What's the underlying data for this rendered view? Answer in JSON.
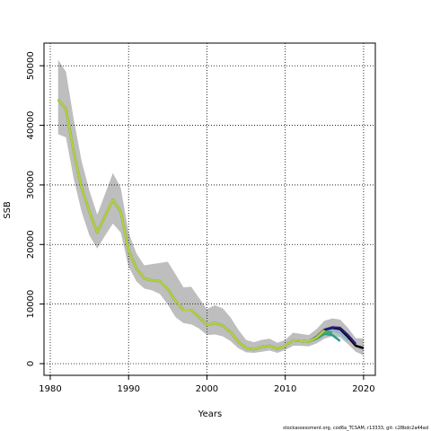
{
  "chart_data": {
    "type": "line",
    "xlabel": "Years",
    "ylabel": "SSB",
    "footnote": "stockassessment.org, cod6a_TCSAM, r13333, git: c28bdc2a44ad",
    "x": [
      1981,
      1982,
      1983,
      1984,
      1985,
      1986,
      1987,
      1988,
      1989,
      1990,
      1991,
      1992,
      1993,
      1994,
      1995,
      1996,
      1997,
      1998,
      1999,
      2000,
      2001,
      2002,
      2003,
      2004,
      2005,
      2006,
      2007,
      2008,
      2009,
      2010,
      2011,
      2012,
      2013,
      2014,
      2015,
      2016,
      2017,
      2018,
      2019,
      2020
    ],
    "band": {
      "color": "#bebebe",
      "upper": [
        51000,
        49000,
        41000,
        34000,
        29000,
        25000,
        28500,
        32000,
        29500,
        22000,
        18500,
        16500,
        16700,
        16900,
        17100,
        15000,
        12800,
        12900,
        11000,
        9200,
        9800,
        9300,
        7800,
        5700,
        4000,
        3600,
        4000,
        4200,
        3500,
        4000,
        5200,
        5000,
        4800,
        5800,
        7200,
        7600,
        7400,
        6000,
        4300,
        4200
      ],
      "lower": [
        38500,
        38000,
        31000,
        25500,
        21500,
        19300,
        21500,
        23500,
        22000,
        16300,
        13800,
        12600,
        12300,
        11700,
        9900,
        7800,
        6800,
        6600,
        5900,
        4800,
        4900,
        4600,
        3800,
        2600,
        1900,
        1800,
        2000,
        2200,
        1800,
        2300,
        3000,
        3000,
        2900,
        3400,
        4200,
        4600,
        4400,
        3300,
        2000,
        1400
      ]
    },
    "series": [
      {
        "color": "#000000",
        "values": [
          44300,
          42800,
          35500,
          29500,
          25500,
          22000,
          24800,
          27500,
          25500,
          19000,
          16000,
          14300,
          14000,
          13800,
          12500,
          10500,
          9000,
          9000,
          7800,
          6500,
          6800,
          6400,
          5300,
          3700,
          2600,
          2400,
          2800,
          3000,
          2500,
          3000,
          3900,
          3800,
          3700,
          4400,
          5500,
          6000,
          5800,
          4500,
          3000,
          2600
        ]
      },
      {
        "color": "#2a1a7a",
        "values": [
          44300,
          42800,
          35500,
          29500,
          25500,
          22000,
          24800,
          27500,
          25500,
          19000,
          16000,
          14300,
          14000,
          13800,
          12500,
          10500,
          9000,
          9000,
          7800,
          6500,
          6800,
          6400,
          5300,
          3700,
          2600,
          2400,
          2800,
          3000,
          2500,
          3000,
          3900,
          3800,
          3700,
          4500,
          5700,
          6100,
          6000,
          4800,
          3300,
          null
        ]
      },
      {
        "color": "#86b6d8",
        "values": [
          44300,
          42800,
          35500,
          29500,
          25500,
          22000,
          24800,
          27500,
          25500,
          19000,
          16000,
          14300,
          14000,
          13800,
          12500,
          10500,
          9000,
          9000,
          7800,
          6500,
          6800,
          6400,
          5300,
          3700,
          2600,
          2400,
          2800,
          3000,
          2500,
          3000,
          3900,
          3800,
          3700,
          4300,
          5300,
          5600,
          5200,
          3900,
          null,
          null
        ]
      },
      {
        "color": "#2a9d8f",
        "values": [
          44300,
          42800,
          35500,
          29500,
          25500,
          22000,
          24800,
          27500,
          25500,
          19000,
          16000,
          14300,
          14000,
          13800,
          12500,
          10500,
          9000,
          9000,
          7800,
          6500,
          6800,
          6400,
          5300,
          3700,
          2600,
          2400,
          2800,
          3000,
          2500,
          3000,
          3900,
          3800,
          3700,
          4200,
          5000,
          4800,
          3800,
          null,
          null,
          null
        ]
      },
      {
        "color": "#3faa55",
        "values": [
          44300,
          42800,
          35500,
          29500,
          25500,
          22000,
          24800,
          27500,
          25500,
          19000,
          16000,
          14300,
          14000,
          13800,
          12500,
          10500,
          9000,
          9000,
          7800,
          6500,
          6800,
          6400,
          5300,
          3700,
          2600,
          2400,
          2800,
          3000,
          2500,
          3000,
          3900,
          3800,
          3700,
          4300,
          5400,
          5200,
          null,
          null,
          null,
          null
        ]
      },
      {
        "color": "#b5cf3a",
        "values": [
          44300,
          42800,
          35500,
          29500,
          25500,
          22000,
          24800,
          27500,
          25500,
          19000,
          16000,
          14300,
          14000,
          13800,
          12500,
          10500,
          9000,
          9000,
          7800,
          6500,
          6800,
          6400,
          5300,
          3700,
          2600,
          2400,
          2800,
          3000,
          2500,
          3000,
          3900,
          3800,
          3700,
          4400,
          5600,
          null,
          null,
          null,
          null,
          null
        ]
      }
    ],
    "xlim": [
      1979.2,
      2021.5
    ],
    "xticks": [
      1980,
      1990,
      2000,
      2010,
      2020
    ],
    "ylim": [
      -1960,
      53800
    ],
    "yticks": [
      0,
      10000,
      20000,
      30000,
      40000,
      50000
    ],
    "grid": true
  }
}
